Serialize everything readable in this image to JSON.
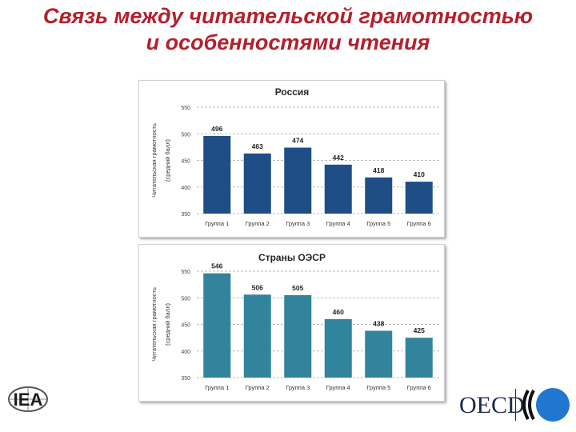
{
  "slide": {
    "title_line1": "Связь между читательской грамотностью",
    "title_line2": "и особенностями чтения"
  },
  "colors": {
    "title": "#b4202c",
    "russia_bars": "#1f4e87",
    "oecd_bars": "#31849b",
    "grid": "#bfbfbf"
  },
  "chart_data": [
    {
      "type": "bar",
      "title": "Россия",
      "ylabel_line1": "Читательская грамотность",
      "ylabel_line2": "(средний балл)",
      "categories": [
        "Группа 1",
        "Группа 2",
        "Группа 3",
        "Группа 4",
        "Группа 5",
        "Группа 6"
      ],
      "values": [
        496,
        463,
        474,
        442,
        418,
        410
      ],
      "yticks": [
        350,
        400,
        450,
        500,
        550
      ],
      "ylim": [
        350,
        550
      ],
      "grid": true
    },
    {
      "type": "bar",
      "title": "Страны ОЭСР",
      "ylabel_line1": "Читательская грамотность",
      "ylabel_line2": "(средний балл)",
      "categories": [
        "Группа 1",
        "Группа 2",
        "Группа 3",
        "Группа 4",
        "Группа 5",
        "Группа 6"
      ],
      "values": [
        546,
        506,
        505,
        460,
        438,
        425
      ],
      "yticks": [
        350,
        400,
        450,
        500,
        550
      ],
      "ylim": [
        350,
        550
      ],
      "grid": true
    }
  ],
  "logos": {
    "left": "IEA",
    "right": "OECD"
  }
}
